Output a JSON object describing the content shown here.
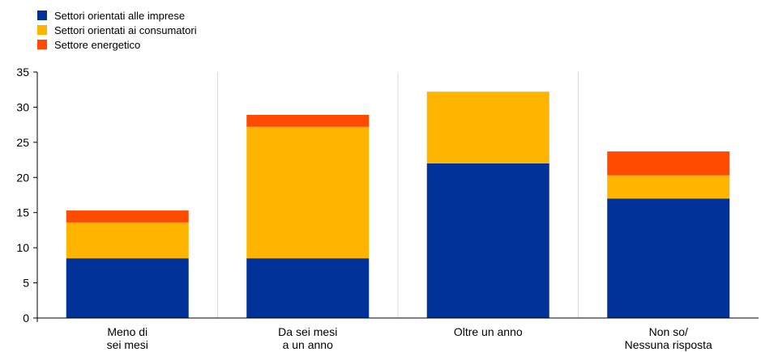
{
  "chart_data": {
    "type": "bar",
    "stacked": true,
    "categories": [
      [
        "Meno di",
        "sei mesi"
      ],
      [
        "Da sei mesi",
        "a un anno"
      ],
      [
        "Oltre un anno"
      ],
      [
        "Non so/",
        "Nessuna risposta"
      ]
    ],
    "series": [
      {
        "name": "Settori orientati alle imprese",
        "color": "#003299",
        "values": [
          8.5,
          8.5,
          22.0,
          17.0
        ]
      },
      {
        "name": "Settori orientati ai consumatori",
        "color": "#ffb400",
        "values": [
          5.1,
          18.7,
          10.2,
          3.3
        ]
      },
      {
        "name": "Settore energetico",
        "color": "#ff4b00",
        "values": [
          1.7,
          1.7,
          0.0,
          3.4
        ]
      }
    ],
    "ylim": [
      0,
      35
    ],
    "yticks": [
      0,
      5,
      10,
      15,
      20,
      25,
      30,
      35
    ],
    "grid": "vertical separators between categories",
    "legend_position": "top-left"
  }
}
